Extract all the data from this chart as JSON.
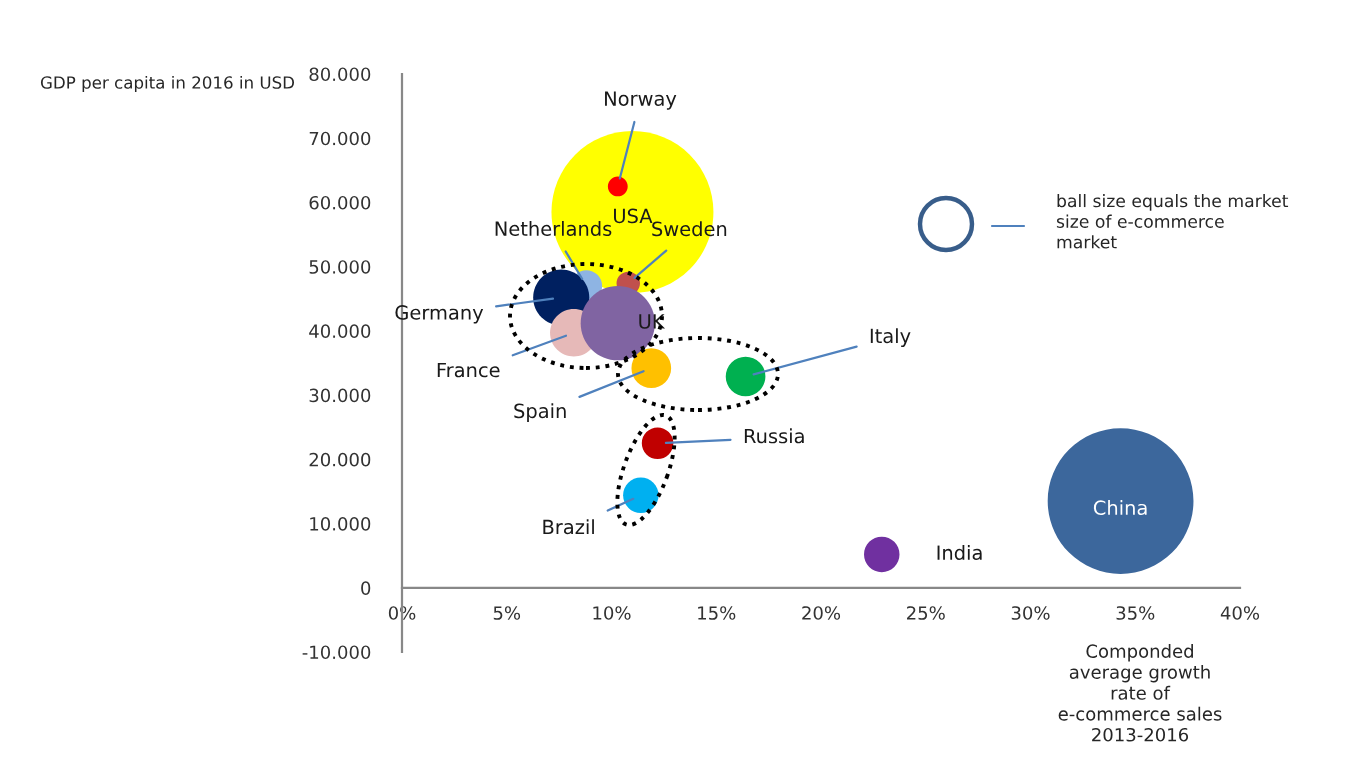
{
  "chart_data": {
    "type": "bubble",
    "xlabel": "Componded\naverage growth\nrate of\ne-commerce sales\n2013-2016",
    "ylabel": "GDP per capita in 2016 in USD",
    "annotations": [
      "ball size equals the market\nsize of e-commerce\nmarket"
    ],
    "xlim": [
      0,
      40
    ],
    "ylim": [
      -10000,
      80000
    ],
    "xticks": [
      {
        "value": 0,
        "label": "0%"
      },
      {
        "value": 5,
        "label": "5%"
      },
      {
        "value": 10,
        "label": "10%"
      },
      {
        "value": 15,
        "label": "15%"
      },
      {
        "value": 20,
        "label": "20%"
      },
      {
        "value": 25,
        "label": "25%"
      },
      {
        "value": 30,
        "label": "30%"
      },
      {
        "value": 35,
        "label": "35%"
      },
      {
        "value": 40,
        "label": "40%"
      }
    ],
    "yticks": [
      {
        "value": -10000,
        "label": "-10.000"
      },
      0,
      {
        "value": 10000,
        "label": "10.000"
      },
      {
        "value": 20000,
        "label": "20.000"
      },
      {
        "value": 30000,
        "label": "30.000"
      },
      {
        "value": 40000,
        "label": "40.000"
      },
      {
        "value": 50000,
        "label": "50.000"
      },
      {
        "value": 60000,
        "label": "60.000"
      },
      {
        "value": 70000,
        "label": "70.000"
      },
      {
        "value": 80000,
        "label": "80.000"
      }
    ],
    "grid": false,
    "legend": false,
    "series": [
      {
        "name": "USA",
        "color": "#ffff00",
        "x": [
          11.0
        ],
        "values": [
          58500
        ],
        "sizes": [
          1
        ]
      },
      {
        "name": "Norway",
        "color": "#ff0000",
        "x": [
          10.3
        ],
        "values": [
          62500
        ],
        "sizes": [
          0.015
        ]
      },
      {
        "name": "Netherlands",
        "color": "#8eb4e3",
        "x": [
          8.8
        ],
        "values": [
          47000
        ],
        "sizes": [
          0.038
        ]
      },
      {
        "name": "Sweden",
        "color": "#c0504d",
        "x": [
          10.8
        ],
        "values": [
          47400
        ],
        "sizes": [
          0.021
        ]
      },
      {
        "name": "Germany",
        "color": "#002060",
        "x": [
          7.6
        ],
        "values": [
          45200
        ],
        "sizes": [
          0.12
        ]
      },
      {
        "name": "France",
        "color": "#e6b9b8",
        "x": [
          8.2
        ],
        "values": [
          39700
        ],
        "sizes": [
          0.086
        ]
      },
      {
        "name": "UK",
        "color": "#8064a2",
        "x": [
          10.3
        ],
        "values": [
          41200
        ],
        "sizes": [
          0.21
        ]
      },
      {
        "name": "Spain",
        "color": "#ffc000",
        "x": [
          11.9
        ],
        "values": [
          34200
        ],
        "sizes": [
          0.06
        ]
      },
      {
        "name": "Italy",
        "color": "#00b050",
        "x": [
          16.4
        ],
        "values": [
          32900
        ],
        "sizes": [
          0.06
        ]
      },
      {
        "name": "Russia",
        "color": "#c00000",
        "x": [
          12.2
        ],
        "values": [
          22500
        ],
        "sizes": [
          0.038
        ]
      },
      {
        "name": "Brazil",
        "color": "#00b0f0",
        "x": [
          11.4
        ],
        "values": [
          14400
        ],
        "sizes": [
          0.048
        ]
      },
      {
        "name": "India",
        "color": "#7030a0",
        "x": [
          22.9
        ],
        "values": [
          5200
        ],
        "sizes": [
          0.048
        ]
      },
      {
        "name": "China",
        "color": "#3c679c",
        "x": [
          34.3
        ],
        "values": [
          13500
        ],
        "sizes": [
          0.81
        ]
      }
    ]
  }
}
